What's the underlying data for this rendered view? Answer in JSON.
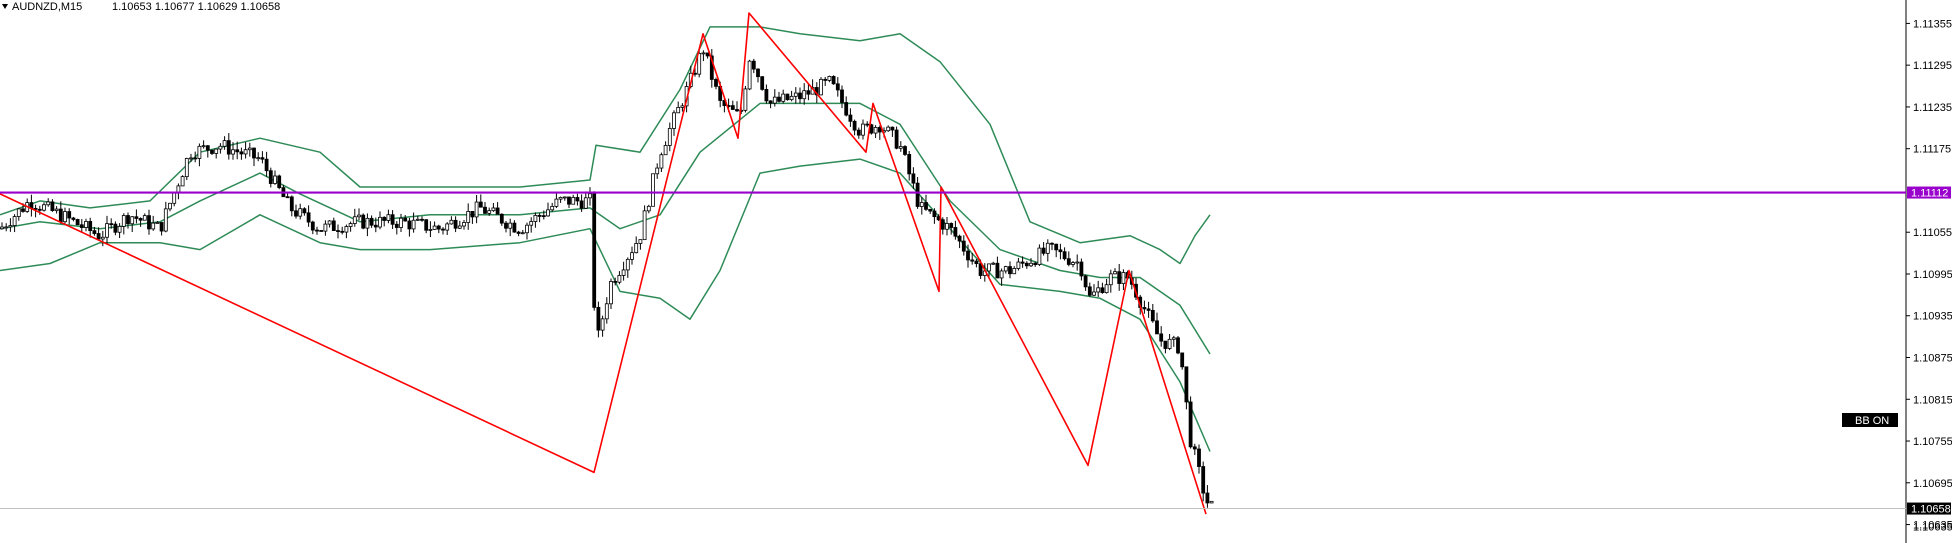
{
  "header": {
    "symbol_timeframe": "AUDNZD,M15",
    "ohlc": "1.10653 1.10677 1.10629 1.10658",
    "collapse_icon": "triangle-down-icon"
  },
  "colors": {
    "background": "#ffffff",
    "candle_bull_fill": "#ffffff",
    "candle_bear_fill": "#000000",
    "candle_outline": "#000000",
    "bollinger": "#2e8b57",
    "zigzag": "#ff0000",
    "horizontal_line": "#9900cc",
    "bid_line": "#c0c0c0",
    "badge_bg": "#000000",
    "badge_text": "#ffffff"
  },
  "chart_data": {
    "type": "candlestick",
    "ylim": [
      1.1062,
      1.1138
    ],
    "y_ticks": [
      "1.11355",
      "1.11295",
      "1.11235",
      "1.11175",
      "1.11112",
      "1.11055",
      "1.10995",
      "1.10935",
      "1.10875",
      "1.10815",
      "1.10755",
      "1.10695",
      "1.10658",
      "1.10635"
    ],
    "horizontal_line": {
      "value": 1.11112,
      "label": "1.11112"
    },
    "bid_line": {
      "value": 1.10658,
      "label": "1.10658"
    },
    "indicator_badge": "BB ON",
    "zigzag": [
      [
        0,
        1.1111
      ],
      [
        594,
        1.1071
      ],
      [
        703,
        1.1134
      ],
      [
        738,
        1.1119
      ],
      [
        749,
        1.1137
      ],
      [
        866,
        1.1117
      ],
      [
        873,
        1.1124
      ],
      [
        939,
        1.1097
      ],
      [
        941,
        1.1112
      ],
      [
        1088,
        1.1072
      ],
      [
        1129,
        1.11
      ],
      [
        1206,
        1.1065
      ]
    ],
    "bollinger_upper": [
      [
        0,
        1.1108
      ],
      [
        40,
        1.111
      ],
      [
        90,
        1.1109
      ],
      [
        150,
        1.111
      ],
      [
        200,
        1.1117
      ],
      [
        260,
        1.1119
      ],
      [
        320,
        1.1117
      ],
      [
        360,
        1.1112
      ],
      [
        430,
        1.1112
      ],
      [
        520,
        1.1112
      ],
      [
        590,
        1.1113
      ],
      [
        596,
        1.1118
      ],
      [
        640,
        1.1117
      ],
      [
        680,
        1.1126
      ],
      [
        710,
        1.1135
      ],
      [
        760,
        1.1135
      ],
      [
        800,
        1.1134
      ],
      [
        860,
        1.1133
      ],
      [
        900,
        1.1134
      ],
      [
        940,
        1.113
      ],
      [
        990,
        1.1121
      ],
      [
        1030,
        1.1107
      ],
      [
        1080,
        1.1104
      ],
      [
        1130,
        1.1105
      ],
      [
        1160,
        1.1103
      ],
      [
        1180,
        1.1101
      ],
      [
        1195,
        1.1105
      ],
      [
        1210,
        1.1108
      ]
    ],
    "bollinger_middle": [
      [
        0,
        1.1106
      ],
      [
        40,
        1.1107
      ],
      [
        100,
        1.1106
      ],
      [
        160,
        1.1107
      ],
      [
        200,
        1.111
      ],
      [
        260,
        1.1114
      ],
      [
        300,
        1.1111
      ],
      [
        360,
        1.1107
      ],
      [
        430,
        1.1108
      ],
      [
        520,
        1.1108
      ],
      [
        590,
        1.1109
      ],
      [
        620,
        1.1106
      ],
      [
        660,
        1.1108
      ],
      [
        700,
        1.1117
      ],
      [
        760,
        1.1124
      ],
      [
        800,
        1.1124
      ],
      [
        860,
        1.1124
      ],
      [
        900,
        1.1121
      ],
      [
        950,
        1.111
      ],
      [
        1000,
        1.1103
      ],
      [
        1060,
        1.11
      ],
      [
        1100,
        1.1099
      ],
      [
        1140,
        1.1099
      ],
      [
        1180,
        1.1095
      ],
      [
        1210,
        1.1088
      ]
    ],
    "bollinger_lower": [
      [
        0,
        1.11
      ],
      [
        50,
        1.1101
      ],
      [
        100,
        1.1104
      ],
      [
        160,
        1.1104
      ],
      [
        200,
        1.1103
      ],
      [
        260,
        1.1108
      ],
      [
        320,
        1.1104
      ],
      [
        360,
        1.1103
      ],
      [
        430,
        1.1103
      ],
      [
        520,
        1.1104
      ],
      [
        590,
        1.1106
      ],
      [
        620,
        1.1097
      ],
      [
        660,
        1.1096
      ],
      [
        690,
        1.1093
      ],
      [
        720,
        1.11
      ],
      [
        760,
        1.1114
      ],
      [
        800,
        1.1115
      ],
      [
        860,
        1.1116
      ],
      [
        900,
        1.1114
      ],
      [
        950,
        1.1106
      ],
      [
        1000,
        1.1098
      ],
      [
        1060,
        1.1097
      ],
      [
        1100,
        1.1096
      ],
      [
        1140,
        1.1093
      ],
      [
        1180,
        1.1084
      ],
      [
        1210,
        1.1074
      ]
    ],
    "candle_path": [
      [
        0,
        1.1106
      ],
      [
        30,
        1.111
      ],
      [
        60,
        1.1108
      ],
      [
        100,
        1.1105
      ],
      [
        130,
        1.1108
      ],
      [
        160,
        1.1106
      ],
      [
        190,
        1.1117
      ],
      [
        220,
        1.1118
      ],
      [
        260,
        1.1116
      ],
      [
        290,
        1.1109
      ],
      [
        320,
        1.1106
      ],
      [
        360,
        1.1107
      ],
      [
        400,
        1.1107
      ],
      [
        440,
        1.1106
      ],
      [
        480,
        1.1109
      ],
      [
        520,
        1.1106
      ],
      [
        560,
        1.111
      ],
      [
        590,
        1.111
      ],
      [
        596,
        1.1089
      ],
      [
        610,
        1.1098
      ],
      [
        640,
        1.1105
      ],
      [
        660,
        1.1117
      ],
      [
        690,
        1.1127
      ],
      [
        703,
        1.1132
      ],
      [
        720,
        1.1124
      ],
      [
        740,
        1.1122
      ],
      [
        750,
        1.1131
      ],
      [
        770,
        1.1124
      ],
      [
        800,
        1.1125
      ],
      [
        830,
        1.1127
      ],
      [
        860,
        1.112
      ],
      [
        880,
        1.1121
      ],
      [
        900,
        1.1118
      ],
      [
        920,
        1.1109
      ],
      [
        950,
        1.1106
      ],
      [
        980,
        1.11
      ],
      [
        1010,
        1.11
      ],
      [
        1050,
        1.1103
      ],
      [
        1080,
        1.1101
      ],
      [
        1090,
        1.1096
      ],
      [
        1110,
        1.1099
      ],
      [
        1129,
        1.1099
      ],
      [
        1160,
        1.109
      ],
      [
        1180,
        1.1089
      ],
      [
        1190,
        1.1076
      ],
      [
        1206,
        1.1067
      ],
      [
        1212,
        1.1066
      ]
    ],
    "plot_left": 0,
    "plot_right": 1212
  }
}
